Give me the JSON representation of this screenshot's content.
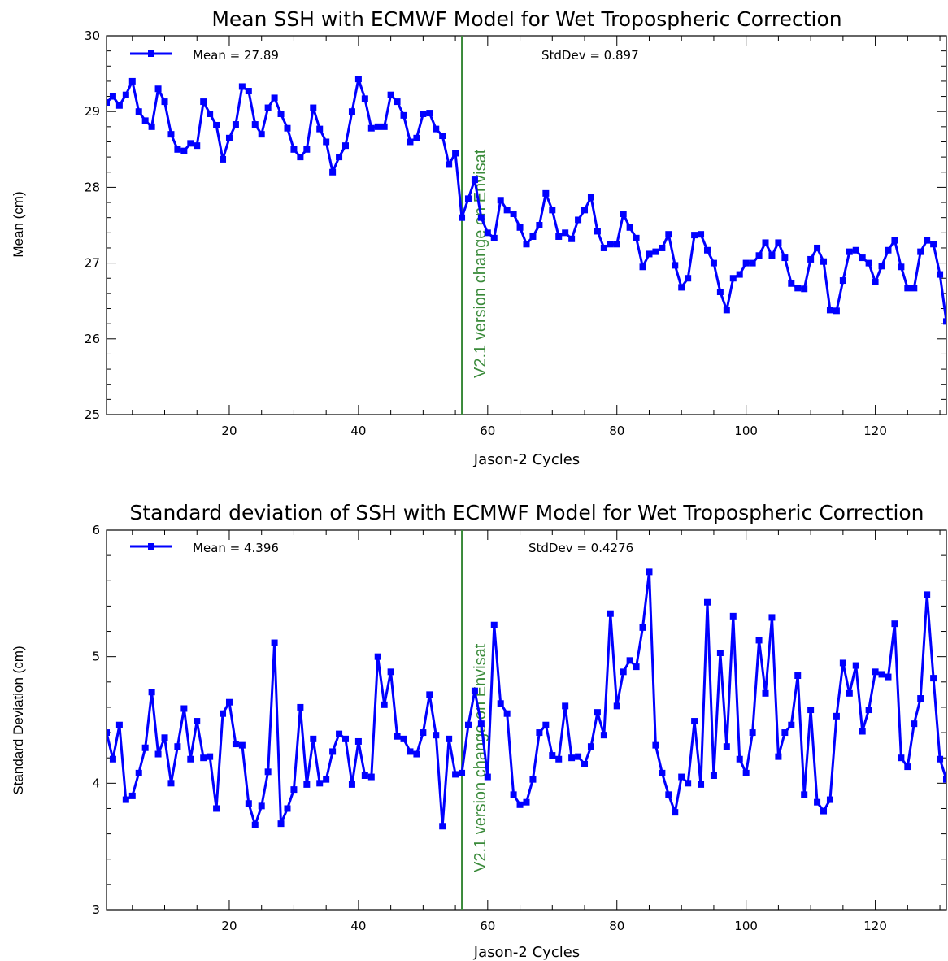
{
  "chart_data": [
    {
      "type": "line",
      "title": "Mean SSH with ECMWF Model for Wet Tropospheric Correction",
      "xlabel": "Jason-2 Cycles",
      "ylabel": "Mean (cm)",
      "xlim": [
        1,
        131
      ],
      "ylim": [
        25,
        30
      ],
      "xticks": [
        20,
        40,
        60,
        80,
        100,
        120
      ],
      "yticks": [
        25,
        26,
        27,
        28,
        29,
        30
      ],
      "grid": false,
      "legend_position": "top-left",
      "legend_label": "Mean = 27.89",
      "stats_text": "StdDev = 0.897",
      "annotation": {
        "text": "V2.1 version change on Envisat",
        "x": 56,
        "color": "#3a8a3a"
      },
      "series": [
        {
          "color": "#0000ff",
          "x": [
            1,
            2,
            3,
            4,
            5,
            6,
            7,
            8,
            9,
            10,
            11,
            12,
            13,
            14,
            15,
            16,
            17,
            18,
            19,
            20,
            21,
            22,
            23,
            24,
            25,
            26,
            27,
            28,
            29,
            30,
            31,
            32,
            33,
            34,
            35,
            36,
            37,
            38,
            39,
            40,
            41,
            42,
            43,
            44,
            45,
            46,
            47,
            48,
            49,
            50,
            51,
            52,
            53,
            54,
            55,
            56,
            57,
            58,
            59,
            60,
            61,
            62,
            63,
            64,
            65,
            66,
            67,
            68,
            69,
            70,
            71,
            72,
            73,
            74,
            75,
            76,
            77,
            78,
            79,
            80,
            81,
            82,
            83,
            84,
            85,
            86,
            87,
            88,
            89,
            90,
            91,
            92,
            93,
            94,
            95,
            96,
            97,
            98,
            99,
            100,
            101,
            102,
            103,
            104,
            105,
            106,
            107,
            108,
            109,
            110,
            111,
            112,
            113,
            114,
            115,
            116,
            117,
            118,
            119,
            120,
            121,
            122,
            123,
            124,
            125,
            126,
            127,
            128,
            129,
            130,
            131
          ],
          "values": [
            29.12,
            29.2,
            29.08,
            29.22,
            29.4,
            29.0,
            28.88,
            28.8,
            29.3,
            29.13,
            28.7,
            28.5,
            28.48,
            28.58,
            28.55,
            29.13,
            28.97,
            28.82,
            28.37,
            28.65,
            28.83,
            29.33,
            29.27,
            28.83,
            28.7,
            29.05,
            29.18,
            28.97,
            28.78,
            28.5,
            28.4,
            28.5,
            29.05,
            28.77,
            28.6,
            28.2,
            28.4,
            28.55,
            29.0,
            29.43,
            29.17,
            28.78,
            28.8,
            28.8,
            29.22,
            29.13,
            28.95,
            28.6,
            28.65,
            28.97,
            28.98,
            28.77,
            28.68,
            28.3,
            28.45,
            27.6,
            27.85,
            28.1,
            27.6,
            27.4,
            27.33,
            27.83,
            27.7,
            27.65,
            27.47,
            27.25,
            27.35,
            27.5,
            27.92,
            27.7,
            27.35,
            27.4,
            27.32,
            27.57,
            27.7,
            27.87,
            27.42,
            27.2,
            27.25,
            27.25,
            27.65,
            27.47,
            27.33,
            26.95,
            27.12,
            27.15,
            27.2,
            27.38,
            26.97,
            26.68,
            26.8,
            27.37,
            27.38,
            27.17,
            27.0,
            26.62,
            26.38,
            26.8,
            26.85,
            27.0,
            27.0,
            27.1,
            27.27,
            27.1,
            27.27,
            27.07,
            26.73,
            26.67,
            26.66,
            27.05,
            27.2,
            27.02,
            26.38,
            26.37,
            26.77,
            27.15,
            27.17,
            27.07,
            27.0,
            26.75,
            26.96,
            27.17,
            27.3,
            26.95,
            26.67,
            26.67,
            27.15,
            27.3,
            27.25,
            26.85,
            26.23
          ]
        }
      ]
    },
    {
      "type": "line",
      "title": "Standard deviation of SSH with ECMWF Model for Wet Tropospheric Correction",
      "xlabel": "Jason-2 Cycles",
      "ylabel": "Standard Deviation (cm)",
      "xlim": [
        1,
        131
      ],
      "ylim": [
        3,
        6
      ],
      "xticks": [
        20,
        40,
        60,
        80,
        100,
        120
      ],
      "yticks": [
        3,
        4,
        5,
        6
      ],
      "grid": false,
      "legend_position": "top-left",
      "legend_label": "Mean = 4.396",
      "stats_text": "StdDev = 0.4276",
      "annotation": {
        "text": "V2.1 version change on Envisat",
        "x": 56,
        "color": "#3a8a3a"
      },
      "series": [
        {
          "color": "#0000ff",
          "x": [
            1,
            2,
            3,
            4,
            5,
            6,
            7,
            8,
            9,
            10,
            11,
            12,
            13,
            14,
            15,
            16,
            17,
            18,
            19,
            20,
            21,
            22,
            23,
            24,
            25,
            26,
            27,
            28,
            29,
            30,
            31,
            32,
            33,
            34,
            35,
            36,
            37,
            38,
            39,
            40,
            41,
            42,
            43,
            44,
            45,
            46,
            47,
            48,
            49,
            50,
            51,
            52,
            53,
            54,
            55,
            56,
            57,
            58,
            59,
            60,
            61,
            62,
            63,
            64,
            65,
            66,
            67,
            68,
            69,
            70,
            71,
            72,
            73,
            74,
            75,
            76,
            77,
            78,
            79,
            80,
            81,
            82,
            83,
            84,
            85,
            86,
            87,
            88,
            89,
            90,
            91,
            92,
            93,
            94,
            95,
            96,
            97,
            98,
            99,
            100,
            101,
            102,
            103,
            104,
            105,
            106,
            107,
            108,
            109,
            110,
            111,
            112,
            113,
            114,
            115,
            116,
            117,
            118,
            119,
            120,
            121,
            122,
            123,
            124,
            125,
            126,
            127,
            128,
            129,
            130,
            131
          ],
          "values": [
            4.4,
            4.19,
            4.46,
            3.87,
            3.9,
            4.08,
            4.28,
            4.72,
            4.23,
            4.36,
            4.0,
            4.29,
            4.59,
            4.19,
            4.49,
            4.2,
            4.21,
            3.8,
            4.55,
            4.64,
            4.31,
            4.3,
            3.84,
            3.67,
            3.82,
            4.09,
            5.11,
            3.68,
            3.8,
            3.95,
            4.6,
            3.99,
            4.35,
            4.0,
            4.03,
            4.25,
            4.39,
            4.35,
            3.99,
            4.33,
            4.06,
            4.05,
            5.0,
            4.62,
            4.88,
            4.37,
            4.35,
            4.25,
            4.23,
            4.4,
            4.7,
            4.38,
            3.66,
            4.35,
            4.07,
            4.08,
            4.46,
            4.73,
            4.47,
            4.05,
            5.25,
            4.63,
            4.55,
            3.91,
            3.83,
            3.85,
            4.03,
            4.4,
            4.46,
            4.22,
            4.19,
            4.61,
            4.2,
            4.21,
            4.15,
            4.29,
            4.56,
            4.38,
            5.34,
            4.61,
            4.88,
            4.97,
            4.92,
            5.23,
            5.67,
            4.3,
            4.08,
            3.91,
            3.77,
            4.05,
            4.0,
            4.49,
            3.99,
            5.43,
            4.06,
            5.03,
            4.29,
            5.32,
            4.19,
            4.08,
            4.4,
            5.13,
            4.71,
            5.31,
            4.21,
            4.4,
            4.46,
            4.85,
            3.91,
            4.58,
            3.85,
            3.78,
            3.87,
            4.53,
            4.95,
            4.71,
            4.93,
            4.41,
            4.58,
            4.88,
            4.86,
            4.84,
            5.26,
            4.2,
            4.13,
            4.47,
            4.67,
            5.49,
            4.83,
            4.19,
            4.03
          ]
        }
      ]
    }
  ]
}
